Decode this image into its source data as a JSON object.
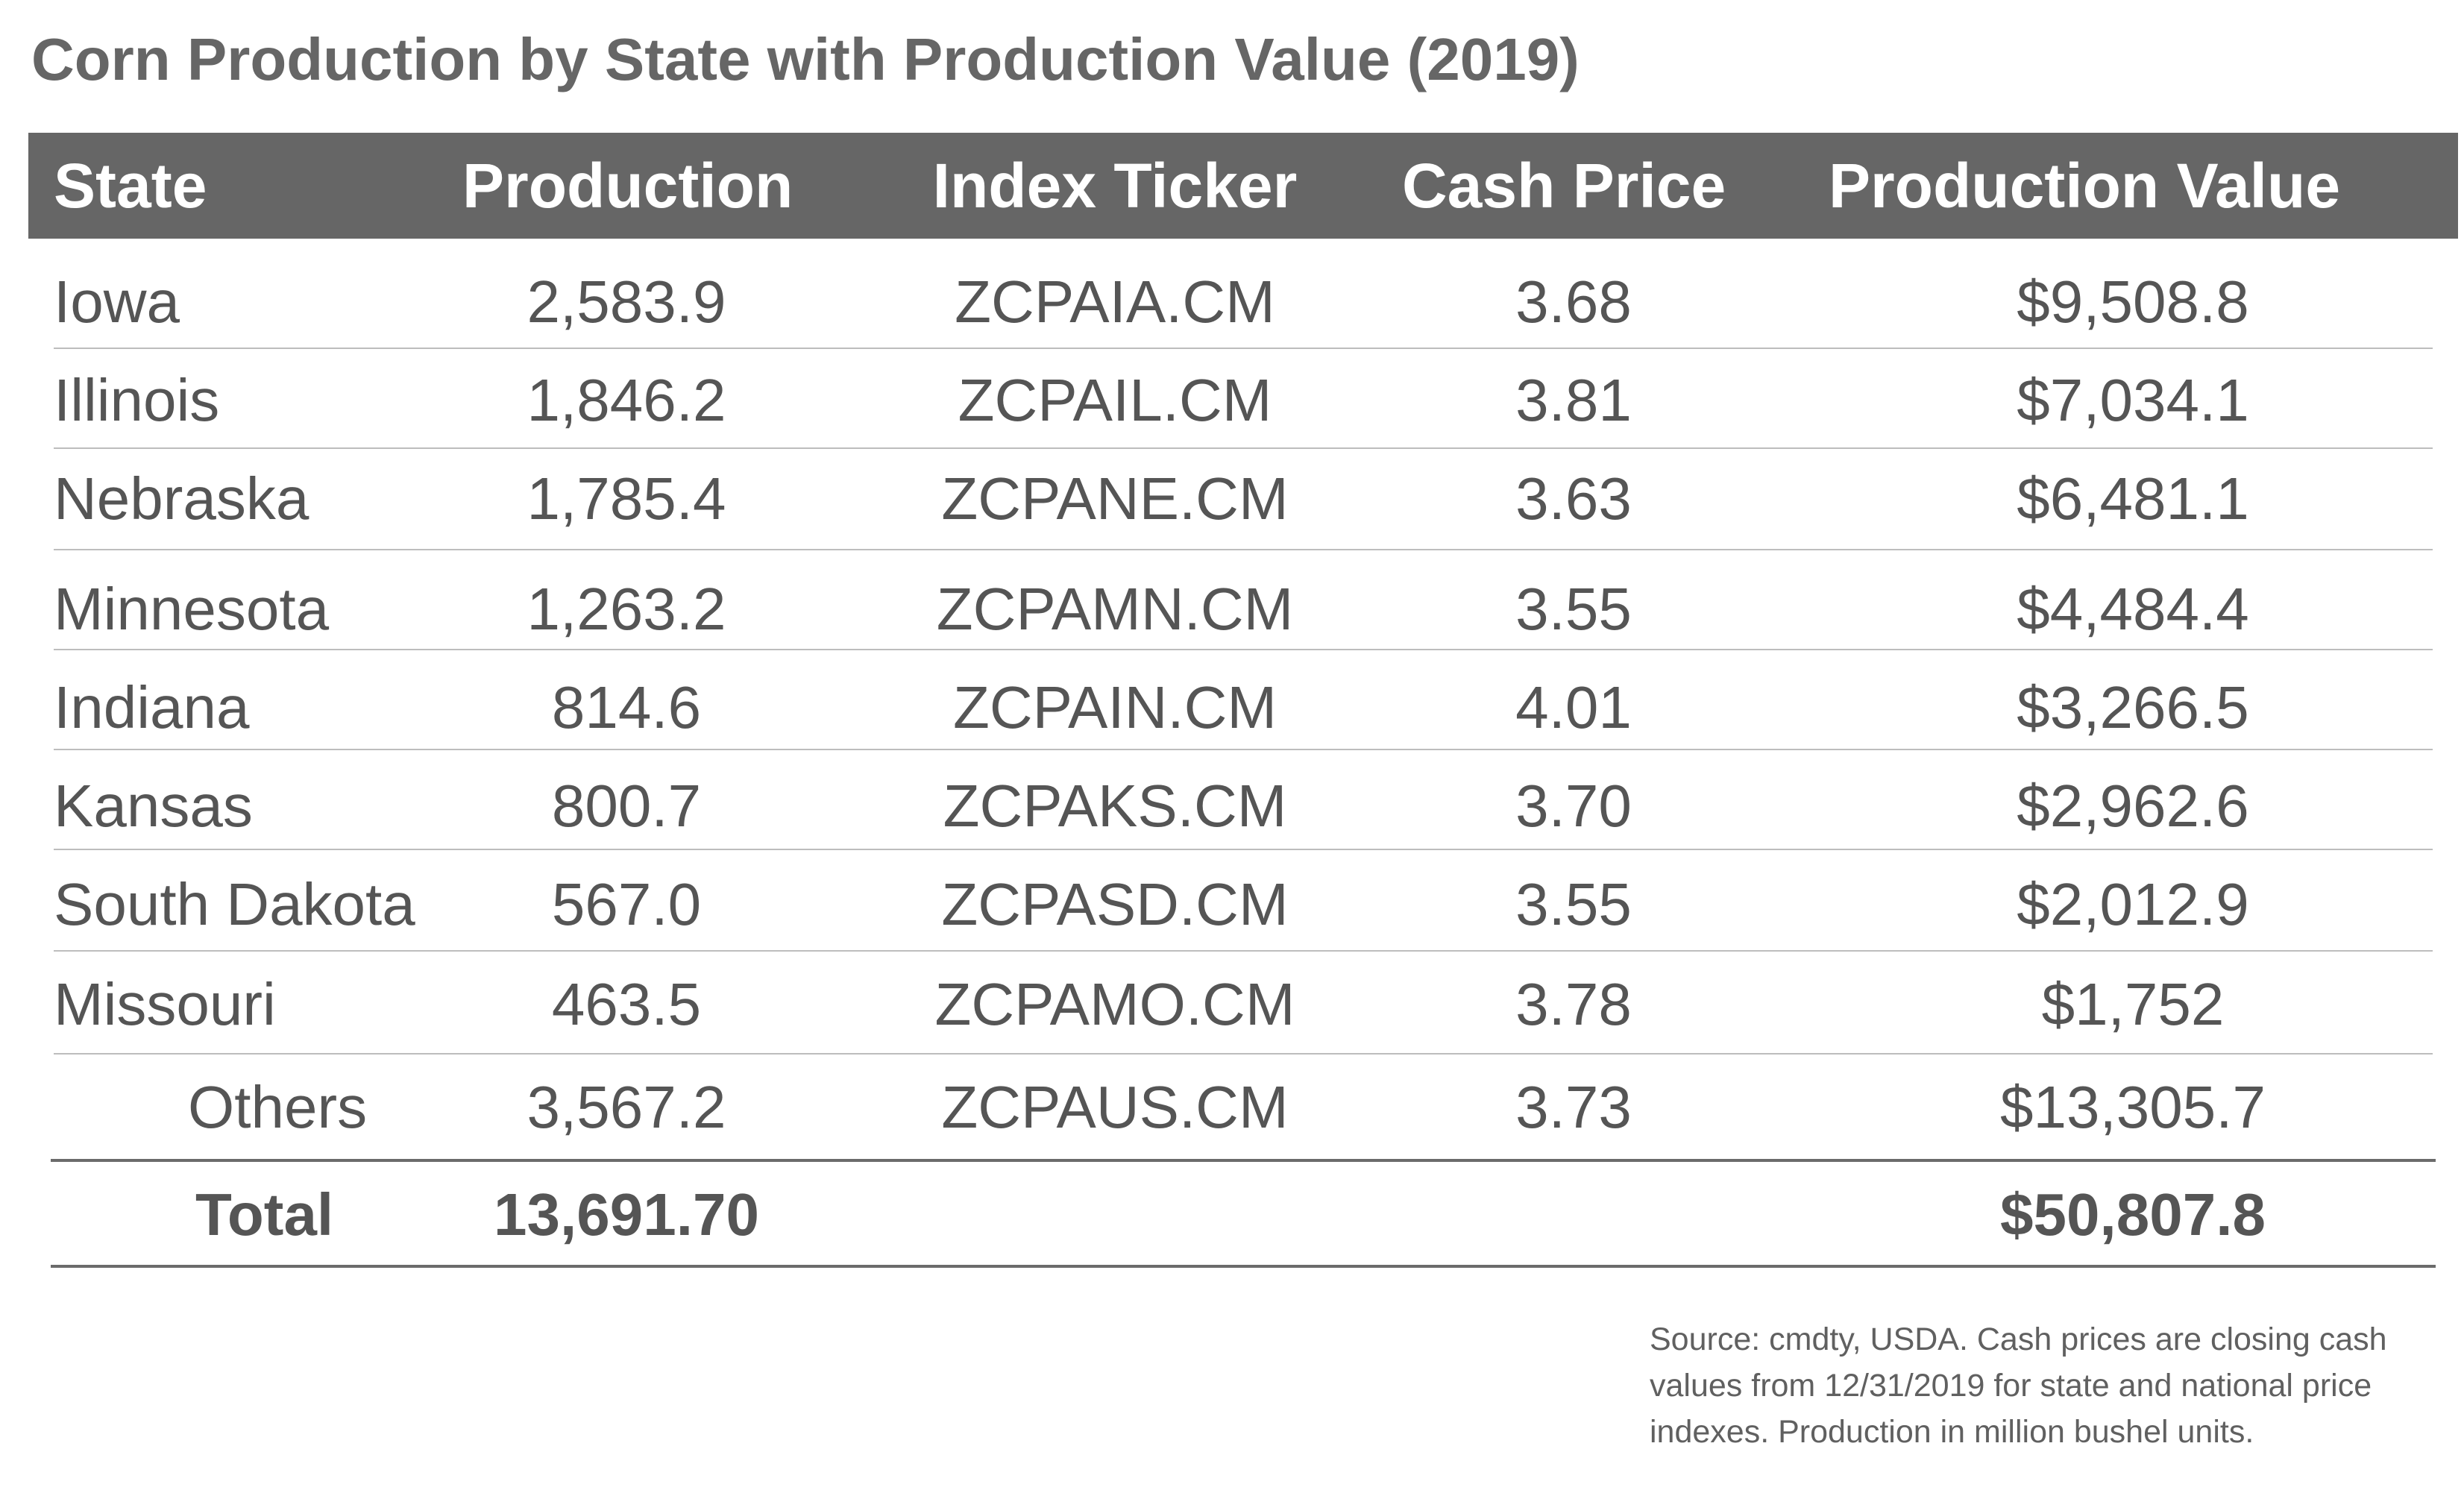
{
  "chart_data": {
    "type": "table",
    "title": "Corn Production by State with Production Value (2019)",
    "columns": [
      "State",
      "Production",
      "Index Ticker",
      "Cash Price",
      "Production Value"
    ],
    "rows": [
      {
        "state": "Iowa",
        "production": "2,583.9",
        "ticker": "ZCPAIA.CM",
        "cash_price": "3.68",
        "value": "$9,508.8"
      },
      {
        "state": "Illinois",
        "production": "1,846.2",
        "ticker": "ZCPAIL.CM",
        "cash_price": "3.81",
        "value": "$7,034.1"
      },
      {
        "state": "Nebraska",
        "production": "1,785.4",
        "ticker": "ZCPANE.CM",
        "cash_price": "3.63",
        "value": "$6,481.1"
      },
      {
        "state": "Minnesota",
        "production": "1,263.2",
        "ticker": "ZCPAMN.CM",
        "cash_price": "3.55",
        "value": "$4,484.4"
      },
      {
        "state": "Indiana",
        "production": "814.6",
        "ticker": "ZCPAIN.CM",
        "cash_price": "4.01",
        "value": "$3,266.5"
      },
      {
        "state": "Kansas",
        "production": "800.7",
        "ticker": "ZCPAKS.CM",
        "cash_price": "3.70",
        "value": "$2,962.6"
      },
      {
        "state": "South Dakota",
        "production": "567.0",
        "ticker": "ZCPASD.CM",
        "cash_price": "3.55",
        "value": "$2,012.9"
      },
      {
        "state": "Missouri",
        "production": "463.5",
        "ticker": "ZCPAMO.CM",
        "cash_price": "3.78",
        "value": "$1,752"
      },
      {
        "state": "Others",
        "production": "3,567.2",
        "ticker": "ZCPAUS.CM",
        "cash_price": "3.73",
        "value": "$13,305.7"
      }
    ],
    "total": {
      "label": "Total",
      "production": "13,691.70",
      "value": "$50,807.8"
    }
  },
  "note": [
    "Source: cmdty, USDA.  Cash prices are closing cash",
    "values from 12/31/2019 for state and national price",
    "indexes.  Production in million bushel units."
  ],
  "colors": {
    "header_bg": "#666666",
    "header_text": "#ffffff",
    "title": "#666666",
    "body_text": "#555555",
    "rule": "#bdbdbd"
  }
}
